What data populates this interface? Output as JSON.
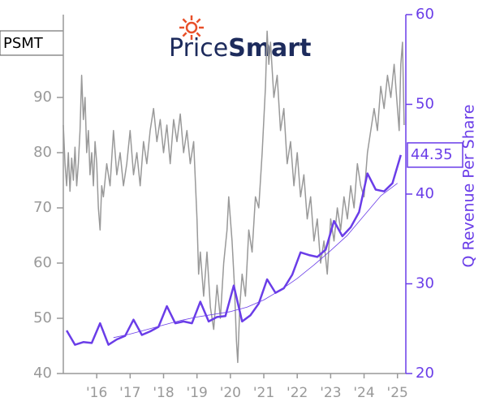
{
  "chart_data": {
    "type": "line",
    "ticker": "PSMT",
    "logo": [
      "Price",
      "Smart"
    ],
    "y2label": "Q Revenue Per Share",
    "xlim": [
      2015,
      2025.25
    ],
    "xticks": [
      {
        "value": 2016,
        "label": "'16"
      },
      {
        "value": 2017,
        "label": "'17"
      },
      {
        "value": 2018,
        "label": "'18"
      },
      {
        "value": 2019,
        "label": "'19"
      },
      {
        "value": 2020,
        "label": "'20"
      },
      {
        "value": 2021,
        "label": "'21"
      },
      {
        "value": 2022,
        "label": "'22"
      },
      {
        "value": 2023,
        "label": "'23"
      },
      {
        "value": 2024,
        "label": "'24"
      },
      {
        "value": 2025,
        "label": "'25"
      }
    ],
    "ylim": [
      40,
      105
    ],
    "yticks": [
      40,
      50,
      60,
      70,
      80,
      90
    ],
    "y2lim": [
      20,
      60
    ],
    "y2ticks": [
      20,
      30,
      40,
      50,
      60
    ],
    "axis_colors": {
      "y": "#999999",
      "y2": "#6a3de8"
    },
    "series": [
      {
        "color": "#999999",
        "width": 1.5,
        "axis": "y",
        "x": [
          2015.0,
          2015.05,
          2015.1,
          2015.15,
          2015.2,
          2015.25,
          2015.3,
          2015.35,
          2015.4,
          2015.45,
          2015.5,
          2015.55,
          2015.6,
          2015.65,
          2015.7,
          2015.75,
          2015.8,
          2015.85,
          2015.9,
          2015.95,
          2016.0,
          2016.05,
          2016.1,
          2016.15,
          2016.2,
          2016.3,
          2016.4,
          2016.5,
          2016.6,
          2016.7,
          2016.8,
          2016.9,
          2017.0,
          2017.1,
          2017.2,
          2017.3,
          2017.4,
          2017.5,
          2017.6,
          2017.7,
          2017.8,
          2017.9,
          2018.0,
          2018.1,
          2018.2,
          2018.3,
          2018.4,
          2018.5,
          2018.6,
          2018.7,
          2018.8,
          2018.9,
          2019.0,
          2019.05,
          2019.1,
          2019.2,
          2019.3,
          2019.4,
          2019.5,
          2019.6,
          2019.7,
          2019.8,
          2019.9,
          2019.95,
          2020.05,
          2020.12,
          2020.18,
          2020.22,
          2020.28,
          2020.35,
          2020.45,
          2020.55,
          2020.65,
          2020.75,
          2020.85,
          2020.95,
          2021.05,
          2021.1,
          2021.15,
          2021.2,
          2021.3,
          2021.4,
          2021.5,
          2021.6,
          2021.7,
          2021.8,
          2021.9,
          2022.0,
          2022.1,
          2022.2,
          2022.3,
          2022.4,
          2022.5,
          2022.6,
          2022.7,
          2022.8,
          2022.9,
          2023.0,
          2023.1,
          2023.2,
          2023.3,
          2023.4,
          2023.5,
          2023.6,
          2023.7,
          2023.8,
          2023.9,
          2024.0,
          2024.1,
          2024.2,
          2024.3,
          2024.4,
          2024.5,
          2024.6,
          2024.7,
          2024.8,
          2024.9,
          2025.0,
          2025.05,
          2025.1,
          2025.15,
          2025.2
        ],
        "values": [
          85,
          78,
          74,
          80,
          73,
          79,
          75,
          81,
          74,
          78,
          84,
          94,
          86,
          90,
          80,
          84,
          76,
          80,
          74,
          82,
          78,
          70,
          66,
          74,
          72,
          78,
          74,
          84,
          76,
          80,
          74,
          78,
          84,
          76,
          80,
          74,
          82,
          78,
          84,
          88,
          82,
          86,
          80,
          85,
          78,
          86,
          82,
          87,
          80,
          84,
          78,
          82,
          68,
          58,
          62,
          54,
          62,
          52,
          48,
          56,
          50,
          60,
          66,
          72,
          64,
          56,
          46,
          42,
          52,
          58,
          54,
          66,
          62,
          72,
          70,
          80,
          92,
          102,
          96,
          100,
          90,
          94,
          84,
          88,
          78,
          82,
          74,
          80,
          72,
          76,
          68,
          72,
          64,
          68,
          60,
          64,
          58,
          68,
          64,
          70,
          66,
          72,
          68,
          74,
          70,
          78,
          74,
          72,
          80,
          84,
          88,
          84,
          92,
          88,
          94,
          90,
          96,
          88,
          84,
          96,
          100,
          85
        ]
      },
      {
        "color": "#6a3de8",
        "width": 0.8,
        "axis": "y2",
        "x": [
          2016.5,
          2017.0,
          2017.5,
          2018.0,
          2018.5,
          2019.0,
          2019.5,
          2020.0,
          2020.5,
          2021.0,
          2021.5,
          2022.0,
          2022.5,
          2023.0,
          2023.5,
          2024.0,
          2024.5,
          2025.0
        ],
        "values": [
          24.0,
          24.4,
          24.9,
          25.4,
          25.9,
          26.3,
          26.6,
          26.9,
          27.4,
          28.2,
          29.3,
          30.6,
          32.1,
          33.7,
          35.4,
          37.6,
          39.8,
          41.2
        ]
      },
      {
        "color": "#6a3de8",
        "width": 2.5,
        "axis": "y2",
        "x": [
          2015.1,
          2015.35,
          2015.6,
          2015.85,
          2016.1,
          2016.35,
          2016.6,
          2016.85,
          2017.1,
          2017.35,
          2017.6,
          2017.85,
          2018.1,
          2018.35,
          2018.6,
          2018.85,
          2019.1,
          2019.35,
          2019.6,
          2019.85,
          2020.1,
          2020.35,
          2020.6,
          2020.85,
          2021.1,
          2021.35,
          2021.6,
          2021.85,
          2022.1,
          2022.35,
          2022.6,
          2022.85,
          2023.1,
          2023.35,
          2023.6,
          2023.85,
          2024.1,
          2024.35,
          2024.6,
          2024.85,
          2025.1
        ],
        "values": [
          24.8,
          23.2,
          23.5,
          23.4,
          25.6,
          23.2,
          23.8,
          24.2,
          26.0,
          24.3,
          24.7,
          25.2,
          27.5,
          25.6,
          25.8,
          25.6,
          28.0,
          25.8,
          26.3,
          26.4,
          29.8,
          25.8,
          26.5,
          27.8,
          30.5,
          29.0,
          29.5,
          31.0,
          33.5,
          33.2,
          33.0,
          33.8,
          37.0,
          35.3,
          36.3,
          38.0,
          42.3,
          40.5,
          40.3,
          41.2,
          44.35
        ],
        "value_labels": [
          null,
          null,
          null,
          null,
          null,
          null,
          null,
          null,
          null,
          null,
          null,
          null,
          null,
          null,
          null,
          null,
          null,
          null,
          null,
          null,
          null,
          null,
          null,
          null,
          null,
          null,
          null,
          null,
          null,
          null,
          null,
          null,
          null,
          null,
          null,
          null,
          null,
          null,
          null,
          null,
          "44.35"
        ]
      }
    ]
  }
}
